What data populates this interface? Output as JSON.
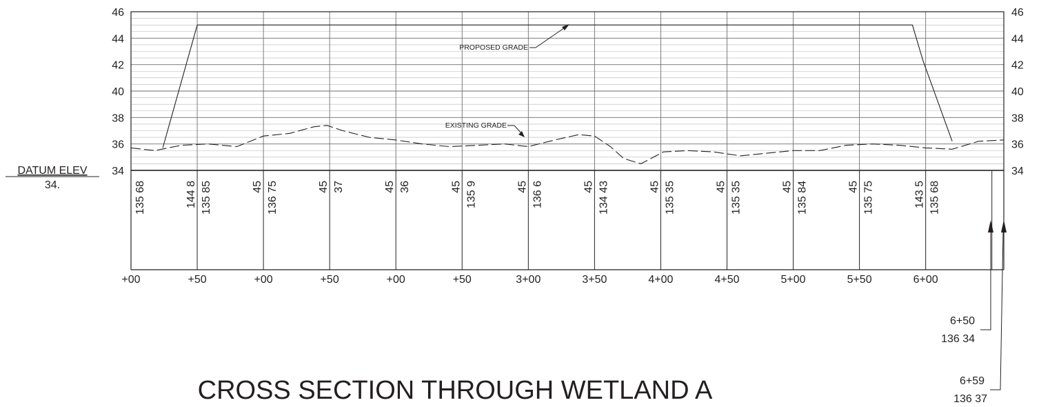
{
  "drawing": {
    "title": "CROSS SECTION THROUGH WETLAND A",
    "datum": {
      "label": "DATUM ELEV",
      "value": "34."
    },
    "annotations": {
      "proposed": "PROPOSED GRADE",
      "existing": "EXISTING GRADE"
    },
    "end_labels": [
      {
        "station": "6+50",
        "elev": "136 34"
      },
      {
        "station": "6+59",
        "elev": "136 37"
      }
    ],
    "colors": {
      "ink": "#231f20",
      "grid_minor": "#b4b4b4",
      "grid_major": "#6e6e6e"
    }
  },
  "chart_data": {
    "type": "line",
    "title": "CROSS SECTION THROUGH WETLAND A",
    "xlabel": "",
    "ylabel": "",
    "xlim": [
      0,
      659
    ],
    "ylim": [
      34,
      46
    ],
    "y_ticks": [
      "34",
      "36",
      "38",
      "40",
      "42",
      "44",
      "46"
    ],
    "station_labels": [
      "+00",
      "+50",
      "+00",
      "+50",
      "+00",
      "+50",
      "3+00",
      "3+50",
      "4+00",
      "4+50",
      "5+00",
      "5+50",
      "6+00"
    ],
    "columns": [
      [
        "135 68"
      ],
      [
        "144 8",
        "135 85"
      ],
      [
        "45",
        "136 75"
      ],
      [
        "45",
        "37"
      ],
      [
        "45",
        "36"
      ],
      [
        "45",
        "135 9"
      ],
      [
        "45",
        "136 6"
      ],
      [
        "45",
        "134 43"
      ],
      [
        "45",
        "135 35"
      ],
      [
        "45",
        "135 35"
      ],
      [
        "45",
        "135 84"
      ],
      [
        "45",
        "135 75"
      ],
      [
        "143 5",
        "135 68"
      ]
    ],
    "series": [
      {
        "name": "PROPOSED GRADE",
        "style": "solid",
        "x": [
          24,
          50,
          590,
          598,
          620
        ],
        "y": [
          35.7,
          45,
          45,
          42.3,
          36.2
        ]
      },
      {
        "name": "EXISTING GRADE",
        "style": "dashed",
        "x": [
          0,
          18,
          38,
          58,
          80,
          100,
          120,
          138,
          148,
          160,
          180,
          200,
          220,
          240,
          262,
          282,
          300,
          320,
          338,
          350,
          362,
          372,
          385,
          402,
          420,
          440,
          460,
          480,
          500,
          520,
          540,
          560,
          580,
          600,
          620,
          640,
          659
        ],
        "y": [
          35.7,
          35.5,
          35.9,
          36.0,
          35.8,
          36.6,
          36.8,
          37.3,
          37.4,
          37.0,
          36.5,
          36.3,
          36.0,
          35.8,
          35.9,
          36.0,
          35.8,
          36.3,
          36.7,
          36.6,
          35.8,
          34.9,
          34.5,
          35.4,
          35.5,
          35.4,
          35.1,
          35.3,
          35.5,
          35.5,
          35.9,
          36.0,
          35.9,
          35.7,
          35.6,
          36.2,
          36.3
        ]
      }
    ]
  }
}
